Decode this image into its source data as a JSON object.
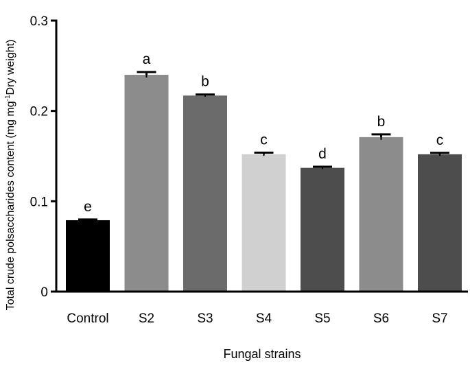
{
  "chart_data": {
    "type": "bar",
    "categories": [
      "Control",
      "S2",
      "S3",
      "S4",
      "S5",
      "S6",
      "S7"
    ],
    "values": [
      0.079,
      0.24,
      0.217,
      0.152,
      0.137,
      0.171,
      0.152
    ],
    "errors": [
      0.0008,
      0.003,
      0.0012,
      0.0018,
      0.0012,
      0.003,
      0.0016
    ],
    "significance_letters": [
      "e",
      "a",
      "b",
      "c",
      "d",
      "b",
      "c"
    ],
    "bar_colors": [
      "#000000",
      "#8c8c8c",
      "#6b6b6b",
      "#d0d0d0",
      "#4d4d4d",
      "#8c8c8c",
      "#4d4d4d"
    ],
    "xlabel": "Fungal strains",
    "ylabel": {
      "main": "Total crude polsaccharides content (mg mg",
      "superscript": "-1",
      "tail": "Dry weight)"
    },
    "ylim": [
      0,
      0.3
    ],
    "yticks": [
      {
        "value": 0,
        "label": "0"
      },
      {
        "value": 0.1,
        "label": "0.1"
      },
      {
        "value": 0.2,
        "label": "0.2"
      },
      {
        "value": 0.3,
        "label": "0.3"
      }
    ],
    "grid": false,
    "legend": "none"
  }
}
